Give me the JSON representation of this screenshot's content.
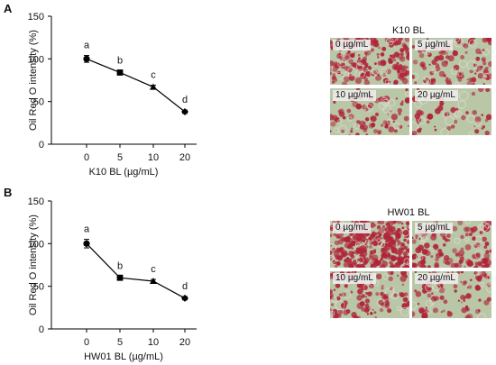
{
  "panels": [
    {
      "letter": "A",
      "image_title": "K10 BL",
      "image_labels": [
        "0 µg/mL",
        "5 µg/mL",
        "10 µg/mL",
        "20 µg/mL"
      ]
    },
    {
      "letter": "B",
      "image_title": "HW01 BL",
      "image_labels": [
        "0 µg/mL",
        "5 µg/mL",
        "10 µg/mL",
        "20 µg/mL"
      ]
    }
  ],
  "chart_data": [
    {
      "type": "line",
      "xlabel": "K10 BL (µg/mL)",
      "ylabel": "Oil Red O intensity (%)",
      "categories": [
        "0",
        "5",
        "10",
        "20"
      ],
      "values": [
        100,
        84,
        67,
        38
      ],
      "errors": [
        4,
        2,
        2,
        2
      ],
      "markers": [
        "circle",
        "square",
        "triangle",
        "diamond"
      ],
      "significance": [
        "a",
        "b",
        "c",
        "d"
      ],
      "ylim": [
        0,
        150
      ],
      "yticks": [
        0,
        50,
        100,
        150
      ],
      "grid": false,
      "colors": {
        "line": "#000000",
        "micro_bg": "#b9c7a7",
        "stain": "#b0243a"
      }
    },
    {
      "type": "line",
      "xlabel": "HW01 BL (µg/mL)",
      "ylabel": "Oil Red O intensity (%)",
      "categories": [
        "0",
        "5",
        "10",
        "20"
      ],
      "values": [
        100,
        60,
        56,
        36
      ],
      "errors": [
        5,
        2,
        2,
        2
      ],
      "markers": [
        "circle",
        "square",
        "triangle",
        "diamond"
      ],
      "significance": [
        "a",
        "b",
        "c",
        "d"
      ],
      "ylim": [
        0,
        150
      ],
      "yticks": [
        0,
        50,
        100,
        150
      ],
      "grid": false,
      "colors": {
        "line": "#000000",
        "micro_bg": "#b9c7a7",
        "stain": "#b0243a"
      }
    }
  ]
}
